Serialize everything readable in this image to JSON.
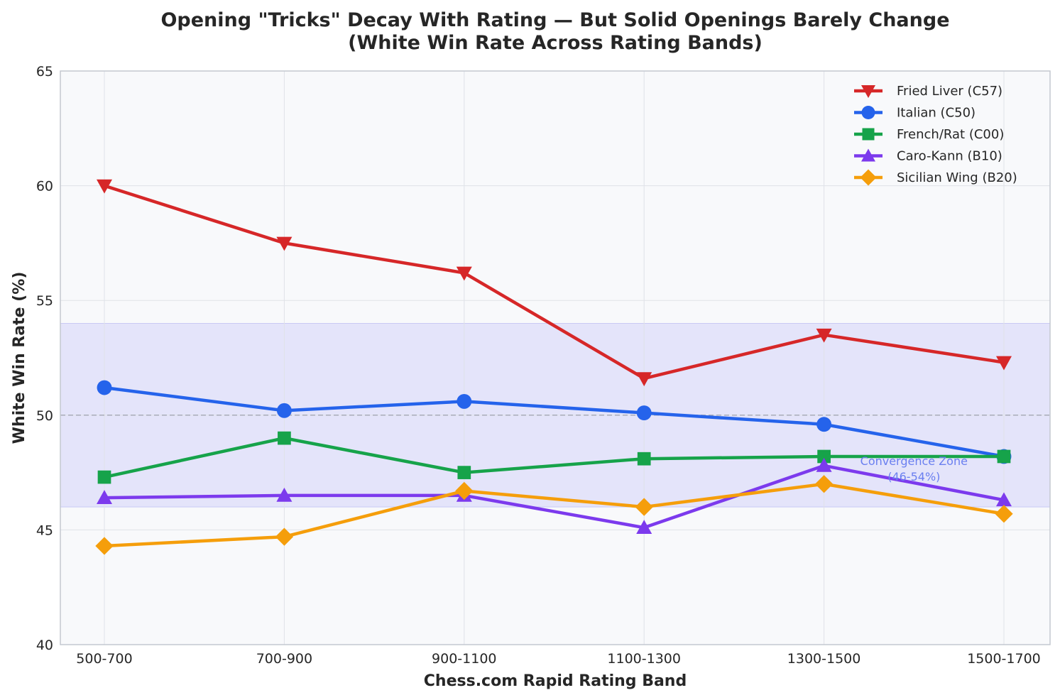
{
  "chart_data": {
    "type": "line",
    "title": "Opening \"Tricks\" Decay With Rating — But Solid Openings Barely Change",
    "subtitle": "(White Win Rate Across Rating Bands)",
    "xlabel": "Chess.com Rapid Rating Band",
    "ylabel": "White Win Rate (%)",
    "categories": [
      "500-700",
      "700-900",
      "900-1100",
      "1100-1300",
      "1300-1500",
      "1500-1700"
    ],
    "ylim": [
      40,
      65
    ],
    "yticks": [
      40,
      45,
      50,
      55,
      60,
      65
    ],
    "grid": true,
    "legend_position": "top-right",
    "reference_line": {
      "y": 50,
      "style": "dashed"
    },
    "band": {
      "from": 46,
      "to": 54,
      "color": "#e4e4fa"
    },
    "annotation": {
      "lines": [
        "Convergence Zone",
        "(46-54%)"
      ],
      "x_index": 4.5,
      "y": 47.3
    },
    "series": [
      {
        "name": "Fried Liver (C57)",
        "color": "#d62728",
        "marker": "triangle-down",
        "values": [
          60.0,
          57.5,
          56.2,
          51.6,
          53.5,
          52.3
        ]
      },
      {
        "name": "Italian (C50)",
        "color": "#2563eb",
        "marker": "circle",
        "values": [
          51.2,
          50.2,
          50.6,
          50.1,
          49.6,
          48.2
        ]
      },
      {
        "name": "French/Rat (C00)",
        "color": "#16a34a",
        "marker": "square",
        "values": [
          47.3,
          49.0,
          47.5,
          48.1,
          48.2,
          48.2
        ]
      },
      {
        "name": "Caro-Kann (B10)",
        "color": "#7c3aed",
        "marker": "triangle-up",
        "values": [
          46.4,
          46.5,
          46.5,
          45.1,
          47.8,
          46.3
        ]
      },
      {
        "name": "Sicilian Wing (B20)",
        "color": "#f59e0b",
        "marker": "diamond",
        "values": [
          44.3,
          44.7,
          46.7,
          46.0,
          47.0,
          45.7
        ]
      }
    ]
  }
}
